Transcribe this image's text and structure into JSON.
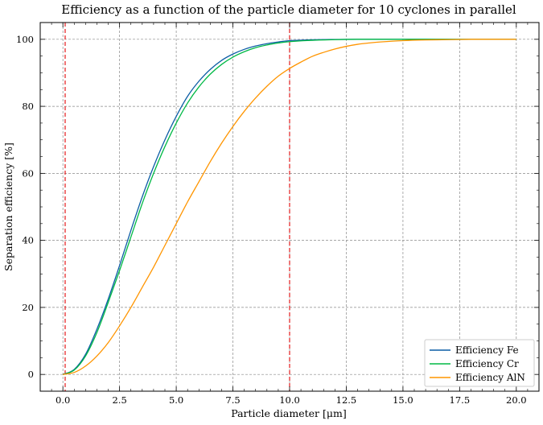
{
  "chart_data": {
    "type": "line",
    "title": "Efficiency as a function of the particle diameter for 10 cyclones in parallel",
    "xlabel": "Particle diameter [μm]",
    "ylabel": "Separation efficiency [%]",
    "xlim": [
      -1.0,
      21.0
    ],
    "ylim": [
      -5,
      105
    ],
    "xticks": [
      0.0,
      2.5,
      5.0,
      7.5,
      10.0,
      12.5,
      15.0,
      17.5,
      20.0
    ],
    "xtick_labels": [
      "0.0",
      "2.5",
      "5.0",
      "7.5",
      "10.0",
      "12.5",
      "15.0",
      "17.5",
      "20.0"
    ],
    "yticks": [
      0,
      20,
      40,
      60,
      80,
      100
    ],
    "ytick_labels": [
      "0",
      "20",
      "40",
      "60",
      "80",
      "100"
    ],
    "grid": true,
    "legend_position": "bottom-right",
    "vlines": [
      {
        "x": 0.1,
        "color": "#e41a1c",
        "style": "dashed"
      },
      {
        "x": 10.0,
        "color": "#e41a1c",
        "style": "dashed"
      }
    ],
    "series": [
      {
        "name": "Efficiency Fe",
        "color": "#0c5da5",
        "x": [
          0,
          0.5,
          1,
          1.5,
          2,
          2.5,
          3,
          3.5,
          4,
          4.5,
          5,
          5.5,
          6,
          6.5,
          7,
          7.5,
          8,
          8.5,
          9,
          9.5,
          10,
          11,
          12,
          13,
          14,
          15,
          16,
          17,
          18,
          19,
          20
        ],
        "y": [
          0,
          1.5,
          6,
          13.5,
          22.5,
          32.5,
          43,
          53,
          62,
          70,
          77,
          83,
          87.5,
          91,
          93.7,
          95.6,
          97,
          98,
          98.7,
          99.2,
          99.6,
          99.85,
          99.95,
          100,
          100,
          100,
          100,
          100,
          100,
          100,
          100
        ]
      },
      {
        "name": "Efficiency Cr",
        "color": "#00b945",
        "x": [
          0,
          0.5,
          1,
          1.5,
          2,
          2.5,
          3,
          3.5,
          4,
          4.5,
          5,
          5.5,
          6,
          6.5,
          7,
          7.5,
          8,
          8.5,
          9,
          9.5,
          10,
          11,
          12,
          13,
          14,
          15,
          16,
          17,
          18,
          19,
          20
        ],
        "y": [
          0,
          1.3,
          5.5,
          12.5,
          21.5,
          31,
          41,
          51,
          60,
          68,
          75,
          81,
          85.8,
          89.6,
          92.5,
          94.7,
          96.3,
          97.5,
          98.3,
          98.9,
          99.3,
          99.7,
          99.9,
          100,
          100,
          100,
          100,
          100,
          100,
          100,
          100
        ]
      },
      {
        "name": "Efficiency AlN",
        "color": "#ff9500",
        "x": [
          0,
          0.5,
          1,
          1.5,
          2,
          2.5,
          3,
          3.5,
          4,
          4.5,
          5,
          5.5,
          6,
          6.5,
          7,
          7.5,
          8,
          8.5,
          9,
          9.5,
          10,
          10.5,
          11,
          11.5,
          12,
          12.5,
          13,
          13.5,
          14,
          15,
          16,
          17,
          18,
          19,
          20
        ],
        "y": [
          0,
          0.6,
          2.5,
          5.5,
          9.5,
          14.5,
          20,
          26,
          32,
          38.5,
          45,
          51.5,
          57.5,
          63.5,
          69,
          74,
          78.5,
          82.5,
          86,
          89,
          91.3,
          93.2,
          94.9,
          96.1,
          97.1,
          97.9,
          98.5,
          98.9,
          99.2,
          99.6,
          99.8,
          99.9,
          100,
          100,
          100
        ]
      }
    ]
  }
}
